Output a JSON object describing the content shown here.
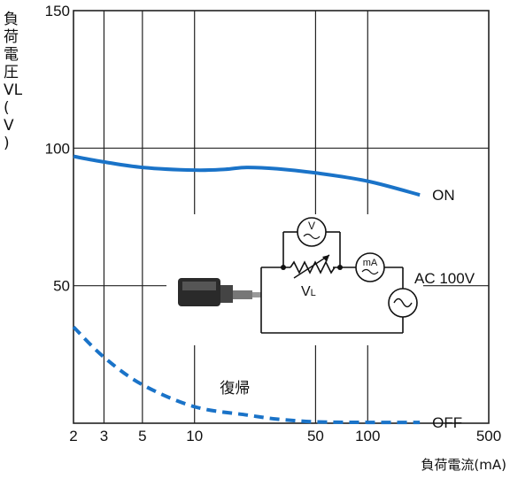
{
  "chart_data": {
    "type": "line",
    "xscale": "log",
    "xlim": [
      2,
      500
    ],
    "ylim": [
      0,
      150
    ],
    "xticks": [
      2,
      3,
      5,
      10,
      50,
      100,
      500
    ],
    "yticks": [
      50,
      100,
      150
    ],
    "xticklabels": [
      "2",
      "3",
      "5",
      "10",
      "50",
      "100",
      "500"
    ],
    "yticklabels": [
      "50",
      "100",
      "150"
    ],
    "xlabel": "負荷電流(mA)",
    "ylabel_lines": [
      "負",
      "荷",
      "電",
      "圧",
      "VL",
      "(",
      "V",
      ")"
    ],
    "grid": true,
    "series": [
      {
        "name": "ON",
        "style": "solid",
        "color": "#1a73c8",
        "x": [
          2,
          3,
          5,
          10,
          15,
          20,
          30,
          50,
          100,
          200
        ],
        "y": [
          97,
          95,
          93,
          92,
          92.3,
          93,
          92.5,
          91,
          88,
          83
        ]
      },
      {
        "name": "OFF",
        "style": "dashed",
        "color": "#1a73c8",
        "x": [
          2,
          3,
          5,
          10,
          20,
          30,
          50,
          100,
          200
        ],
        "y": [
          35,
          24,
          14,
          6,
          3,
          1.5,
          0.5,
          0.3,
          0.3
        ]
      }
    ],
    "annotations": [
      {
        "text": "復帰",
        "near_series": "OFF"
      }
    ]
  },
  "circuit": {
    "v_meter": "V",
    "ma_meter": "mA",
    "load_label": "VL",
    "source_label": "AC 100V"
  },
  "colors": {
    "curve": "#1a73c8",
    "grid": "#222222"
  }
}
